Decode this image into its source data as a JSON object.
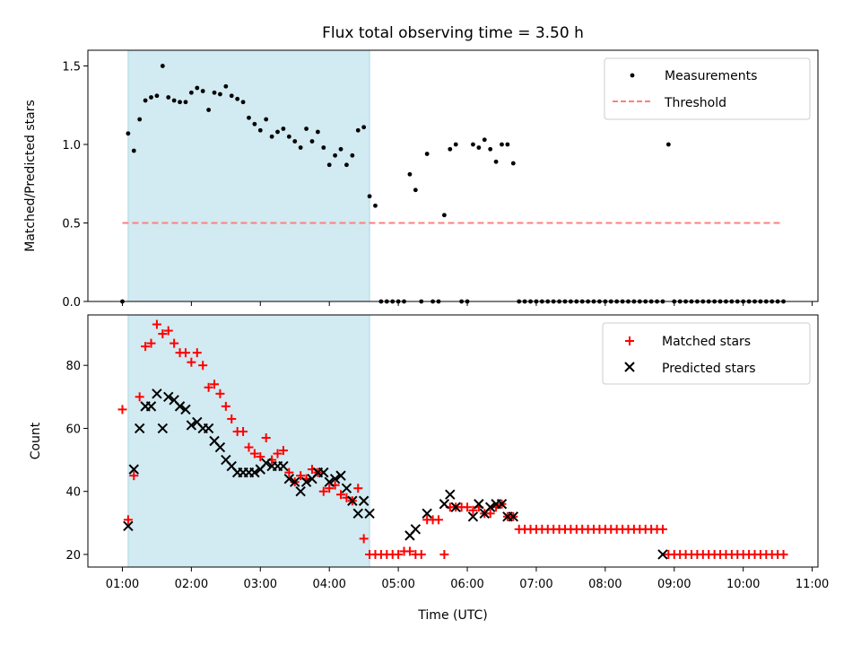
{
  "chart_data": [
    {
      "type": "scatter",
      "title": "Flux total observing time = 3.50 h",
      "xlabel": "",
      "ylabel": "Matched/Predicted stars",
      "ylim": [
        0,
        1.6
      ],
      "yticks": [
        0.0,
        0.5,
        1.0,
        1.5
      ],
      "ytick_labels": [
        "0.0",
        "0.5",
        "1.0",
        "1.5"
      ],
      "grid": false,
      "legend_position": "top-right",
      "legend": [
        "Measurements",
        "Threshold"
      ],
      "shaded_interval": [
        "01:05",
        "04:35"
      ],
      "colors": {
        "measurements": "#000000",
        "threshold": "#ff7f7f",
        "shade": "#add8e6"
      },
      "threshold": {
        "value": 0.5,
        "x_start": "01:00",
        "x_end": "10:35"
      },
      "series": [
        {
          "name": "Measurements",
          "marker": "dot",
          "x": [
            "01:00",
            "01:05",
            "01:10",
            "01:15",
            "01:20",
            "01:25",
            "01:30",
            "01:35",
            "01:40",
            "01:45",
            "01:50",
            "01:55",
            "02:00",
            "02:05",
            "02:10",
            "02:15",
            "02:20",
            "02:25",
            "02:30",
            "02:35",
            "02:40",
            "02:45",
            "02:50",
            "02:55",
            "03:00",
            "03:05",
            "03:10",
            "03:15",
            "03:20",
            "03:25",
            "03:30",
            "03:35",
            "03:40",
            "03:45",
            "03:50",
            "03:55",
            "04:00",
            "04:05",
            "04:10",
            "04:15",
            "04:20",
            "04:25",
            "04:30",
            "04:35",
            "04:40",
            "04:45",
            "04:50",
            "04:55",
            "05:00",
            "05:05",
            "05:10",
            "05:15",
            "05:20",
            "05:25",
            "05:30",
            "05:35",
            "05:40",
            "05:45",
            "05:50",
            "05:55",
            "06:00",
            "06:05",
            "06:10",
            "06:15",
            "06:20",
            "06:25",
            "06:30",
            "06:35",
            "06:40",
            "06:45",
            "06:50",
            "06:55",
            "07:00",
            "07:05",
            "07:10",
            "07:15",
            "07:20",
            "07:25",
            "07:30",
            "07:35",
            "07:40",
            "07:45",
            "07:50",
            "07:55",
            "08:00",
            "08:05",
            "08:10",
            "08:15",
            "08:20",
            "08:25",
            "08:30",
            "08:35",
            "08:40",
            "08:45",
            "08:50",
            "08:55",
            "09:00",
            "09:05",
            "09:10",
            "09:15",
            "09:20",
            "09:25",
            "09:30",
            "09:35",
            "09:40",
            "09:45",
            "09:50",
            "09:55",
            "10:00",
            "10:05",
            "10:10",
            "10:15",
            "10:20",
            "10:25",
            "10:30",
            "10:35"
          ],
          "values": [
            0.0,
            1.07,
            0.96,
            1.16,
            1.28,
            1.3,
            1.31,
            1.5,
            1.3,
            1.28,
            1.27,
            1.27,
            1.33,
            1.36,
            1.34,
            1.22,
            1.33,
            1.32,
            1.37,
            1.31,
            1.29,
            1.27,
            1.17,
            1.13,
            1.09,
            1.16,
            1.05,
            1.08,
            1.1,
            1.05,
            1.02,
            0.98,
            1.1,
            1.02,
            1.08,
            0.98,
            0.87,
            0.93,
            0.97,
            0.87,
            0.93,
            1.09,
            1.11,
            0.67,
            0.61,
            0.0,
            0.0,
            0.0,
            0.0,
            0.0,
            0.81,
            0.71,
            0.0,
            0.94,
            0.0,
            0.0,
            0.55,
            0.97,
            1.0,
            0.0,
            0.0,
            1.0,
            0.98,
            1.03,
            0.97,
            0.89,
            1.0,
            1.0,
            0.88,
            0.0,
            0.0,
            0.0,
            0.0,
            0.0,
            0.0,
            0.0,
            0.0,
            0.0,
            0.0,
            0.0,
            0.0,
            0.0,
            0.0,
            0.0,
            0.0,
            0.0,
            0.0,
            0.0,
            0.0,
            0.0,
            0.0,
            0.0,
            0.0,
            0.0,
            0.0,
            1.0,
            0.0,
            0.0,
            0.0,
            0.0,
            0.0,
            0.0,
            0.0,
            0.0,
            0.0,
            0.0,
            0.0,
            0.0,
            0.0,
            0.0,
            0.0,
            0.0,
            0.0,
            0.0,
            0.0,
            0.0
          ]
        }
      ]
    },
    {
      "type": "scatter",
      "title": "",
      "xlabel": "Time (UTC)",
      "ylabel": "Count",
      "ylim": [
        16,
        96
      ],
      "yticks": [
        20,
        40,
        60,
        80
      ],
      "ytick_labels": [
        "20",
        "40",
        "60",
        "80"
      ],
      "xlim": [
        "00:30",
        "11:05"
      ],
      "xticks": [
        "01:00",
        "02:00",
        "03:00",
        "04:00",
        "05:00",
        "06:00",
        "07:00",
        "08:00",
        "09:00",
        "10:00",
        "11:00"
      ],
      "xtick_labels": [
        "01:00",
        "02:00",
        "03:00",
        "04:00",
        "05:00",
        "06:00",
        "07:00",
        "08:00",
        "09:00",
        "10:00",
        "11:00"
      ],
      "grid": false,
      "legend_position": "top-right",
      "legend": [
        "Matched stars",
        "Predicted stars"
      ],
      "shaded_interval": [
        "01:05",
        "04:35"
      ],
      "colors": {
        "matched": "#ff0000",
        "predicted": "#000000",
        "shade": "#add8e6"
      },
      "series": [
        {
          "name": "Matched stars",
          "marker": "plus",
          "x": [
            "01:00",
            "01:05",
            "01:10",
            "01:15",
            "01:20",
            "01:25",
            "01:30",
            "01:35",
            "01:40",
            "01:45",
            "01:50",
            "01:55",
            "02:00",
            "02:05",
            "02:10",
            "02:15",
            "02:20",
            "02:25",
            "02:30",
            "02:35",
            "02:40",
            "02:45",
            "02:50",
            "02:55",
            "03:00",
            "03:05",
            "03:10",
            "03:15",
            "03:20",
            "03:25",
            "03:30",
            "03:35",
            "03:40",
            "03:45",
            "03:50",
            "03:55",
            "04:00",
            "04:05",
            "04:10",
            "04:15",
            "04:20",
            "04:25",
            "04:30",
            "04:35",
            "04:40",
            "04:45",
            "04:50",
            "04:55",
            "05:00",
            "05:05",
            "05:10",
            "05:15",
            "05:20",
            "05:25",
            "05:30",
            "05:35",
            "05:40",
            "05:45",
            "05:50",
            "05:55",
            "06:00",
            "06:05",
            "06:10",
            "06:15",
            "06:20",
            "06:25",
            "06:30",
            "06:35",
            "06:40",
            "06:45",
            "06:50",
            "06:55",
            "07:00",
            "07:05",
            "07:10",
            "07:15",
            "07:20",
            "07:25",
            "07:30",
            "07:35",
            "07:40",
            "07:45",
            "07:50",
            "07:55",
            "08:00",
            "08:05",
            "08:10",
            "08:15",
            "08:20",
            "08:25",
            "08:30",
            "08:35",
            "08:40",
            "08:45",
            "08:50",
            "08:55",
            "09:00",
            "09:05",
            "09:10",
            "09:15",
            "09:20",
            "09:25",
            "09:30",
            "09:35",
            "09:40",
            "09:45",
            "09:50",
            "09:55",
            "10:00",
            "10:05",
            "10:10",
            "10:15",
            "10:20",
            "10:25",
            "10:30",
            "10:35"
          ],
          "values": [
            66,
            31,
            45,
            70,
            86,
            87,
            93,
            90,
            91,
            87,
            84,
            84,
            81,
            84,
            80,
            73,
            74,
            71,
            67,
            63,
            59,
            59,
            54,
            52,
            51,
            57,
            50,
            52,
            53,
            46,
            43,
            45,
            44,
            47,
            46,
            40,
            41,
            42,
            39,
            38,
            37,
            41,
            25,
            20,
            20,
            20,
            20,
            20,
            20,
            21,
            21,
            20,
            20,
            31,
            31,
            31,
            20,
            35,
            35,
            35,
            35,
            34,
            35,
            33,
            33,
            35,
            36,
            32,
            32,
            28,
            28,
            28,
            28,
            28,
            28,
            28,
            28,
            28,
            28,
            28,
            28,
            28,
            28,
            28,
            28,
            28,
            28,
            28,
            28,
            28,
            28,
            28,
            28,
            28,
            28,
            20,
            20,
            20,
            20,
            20,
            20,
            20,
            20,
            20,
            20,
            20,
            20,
            20,
            20,
            20,
            20,
            20,
            20,
            20,
            20,
            20
          ]
        },
        {
          "name": "Predicted stars",
          "marker": "x",
          "x": [
            "01:05",
            "01:10",
            "01:15",
            "01:20",
            "01:25",
            "01:30",
            "01:35",
            "01:40",
            "01:45",
            "01:50",
            "01:55",
            "02:00",
            "02:05",
            "02:10",
            "02:15",
            "02:20",
            "02:25",
            "02:30",
            "02:35",
            "02:40",
            "02:45",
            "02:50",
            "02:55",
            "03:00",
            "03:05",
            "03:10",
            "03:15",
            "03:20",
            "03:25",
            "03:30",
            "03:35",
            "03:40",
            "03:45",
            "03:50",
            "03:55",
            "04:00",
            "04:05",
            "04:10",
            "04:15",
            "04:20",
            "04:25",
            "04:30",
            "04:35",
            "05:10",
            "05:15",
            "05:25",
            "05:40",
            "05:45",
            "05:50",
            "06:05",
            "06:10",
            "06:15",
            "06:20",
            "06:25",
            "06:30",
            "06:35",
            "06:40",
            "08:50"
          ],
          "values": [
            29,
            47,
            60,
            67,
            67,
            71,
            60,
            70,
            69,
            67,
            66,
            61,
            62,
            60,
            60,
            56,
            54,
            50,
            48,
            46,
            46,
            46,
            46,
            47,
            49,
            48,
            48,
            48,
            44,
            43,
            40,
            43,
            44,
            46,
            46,
            43,
            44,
            45,
            41,
            37,
            33,
            37,
            33,
            26,
            28,
            33,
            36,
            39,
            35,
            32,
            36,
            33,
            35,
            36,
            36,
            32,
            32,
            20
          ]
        }
      ]
    }
  ]
}
